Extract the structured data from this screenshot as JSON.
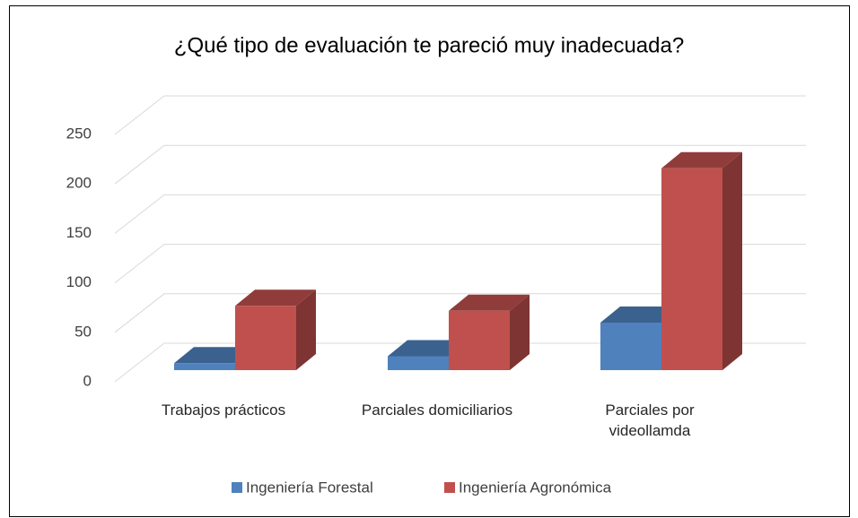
{
  "chart_data": {
    "type": "bar3d",
    "title": "¿Qué tipo de evaluación te pareció muy inadecuada?",
    "categories": [
      "Trabajos prácticos",
      "Parciales domiciliarios",
      "Parciales por videollamda"
    ],
    "series": [
      {
        "name": "Ingeniería Forestal",
        "color": "#4f81bd",
        "values": [
          7,
          14,
          48
        ]
      },
      {
        "name": "Ingeniería Agronómica",
        "color": "#c0504d",
        "values": [
          65,
          60,
          204
        ]
      }
    ],
    "ylim": [
      0,
      250
    ],
    "yticks": [
      0,
      50,
      100,
      150,
      200,
      250
    ],
    "grid": true,
    "legend": "bottom"
  }
}
